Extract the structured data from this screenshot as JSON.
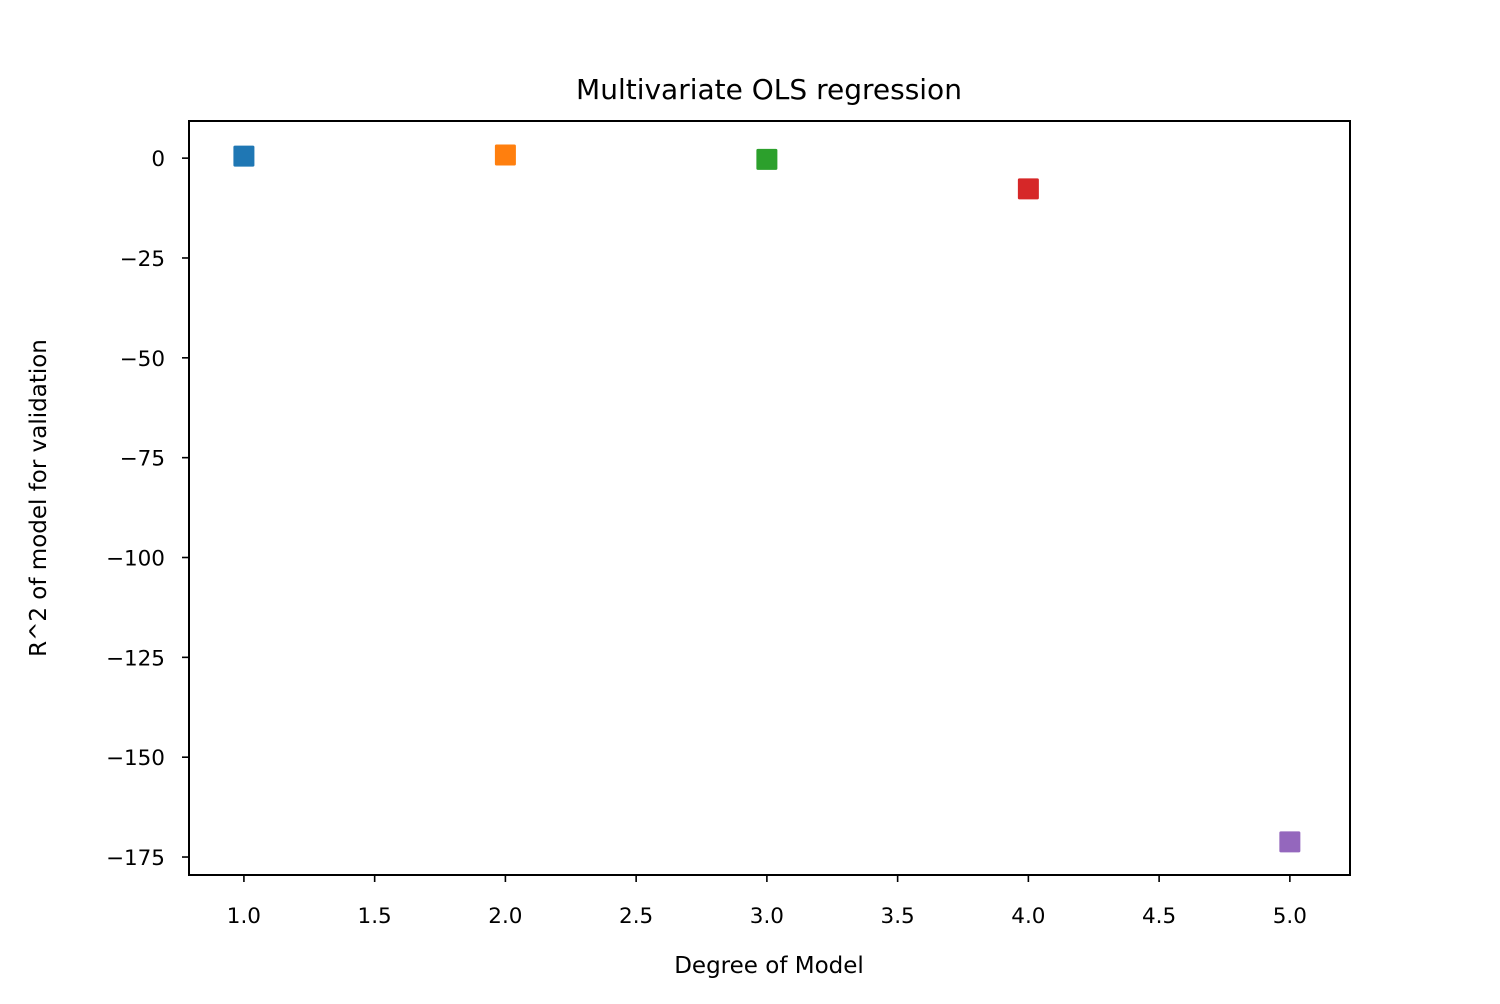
{
  "chart_data": {
    "type": "scatter",
    "title": "Multivariate OLS regression",
    "xlabel": "Degree of Model",
    "ylabel": "R^2 of model for validation",
    "xlim": [
      0.79,
      5.23
    ],
    "ylim": [
      -179.5,
      9.3
    ],
    "grid": false,
    "marker": "square",
    "xticks": [
      1.0,
      1.5,
      2.0,
      2.5,
      3.0,
      3.5,
      4.0,
      4.5,
      5.0
    ],
    "xtick_labels": [
      "1.0",
      "1.5",
      "2.0",
      "2.5",
      "3.0",
      "3.5",
      "4.0",
      "4.5",
      "5.0"
    ],
    "yticks": [
      0,
      -25,
      -50,
      -75,
      -100,
      -125,
      -150,
      -175
    ],
    "ytick_labels": [
      "0",
      "−25",
      "−50",
      "−75",
      "−100",
      "−125",
      "−150",
      "−175"
    ],
    "series": [
      {
        "x": [
          1
        ],
        "values": [
          0.5
        ],
        "color": "#1f77b4"
      },
      {
        "x": [
          2
        ],
        "values": [
          0.8
        ],
        "color": "#ff7f0e"
      },
      {
        "x": [
          3
        ],
        "values": [
          -0.3
        ],
        "color": "#2ca02c"
      },
      {
        "x": [
          4
        ],
        "values": [
          -7.7
        ],
        "color": "#d62728"
      },
      {
        "x": [
          5
        ],
        "values": [
          -171.2
        ],
        "color": "#9467bd"
      }
    ]
  }
}
